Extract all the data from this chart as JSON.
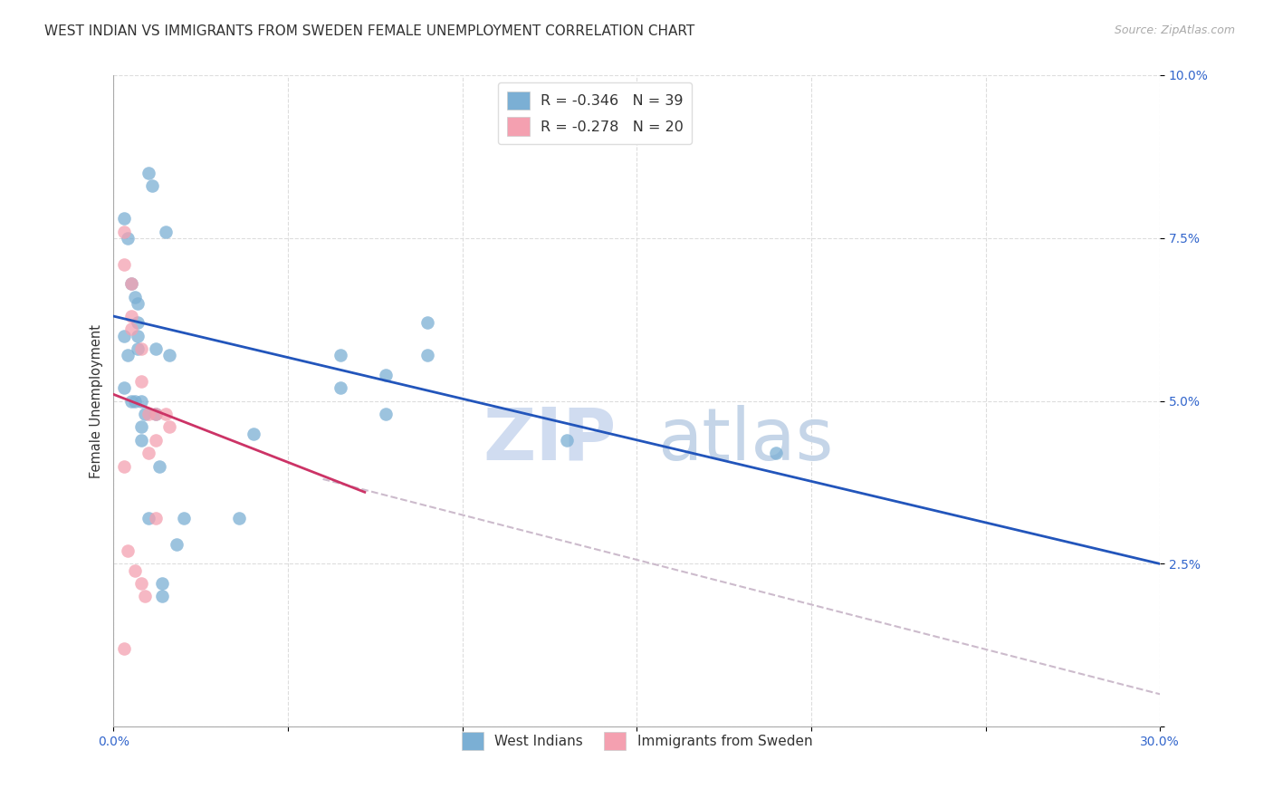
{
  "title": "WEST INDIAN VS IMMIGRANTS FROM SWEDEN FEMALE UNEMPLOYMENT CORRELATION CHART",
  "source": "Source: ZipAtlas.com",
  "ylabel": "Female Unemployment",
  "xlim": [
    0.0,
    0.3
  ],
  "ylim": [
    0.0,
    0.1
  ],
  "xtick_positions": [
    0.0,
    0.05,
    0.1,
    0.15,
    0.2,
    0.25,
    0.3
  ],
  "ytick_positions": [
    0.0,
    0.025,
    0.05,
    0.075,
    0.1
  ],
  "ytick_labels": [
    "",
    "2.5%",
    "5.0%",
    "7.5%",
    "10.0%"
  ],
  "xtick_labels": [
    "0.0%",
    "",
    "",
    "",
    "",
    "",
    "30.0%"
  ],
  "legend1_label": "R = -0.346   N = 39",
  "legend2_label": "R = -0.278   N = 20",
  "legend_bottom1": "West Indians",
  "legend_bottom2": "Immigrants from Sweden",
  "blue_color": "#7BAFD4",
  "pink_color": "#F4A0B0",
  "blue_line_color": "#2255BB",
  "pink_line_color": "#CC3366",
  "dashed_line_color": "#CCBBCC",
  "watermark_zip": "ZIP",
  "watermark_atlas": "atlas",
  "blue_scatter_x": [
    0.007,
    0.007,
    0.01,
    0.011,
    0.003,
    0.004,
    0.005,
    0.006,
    0.007,
    0.012,
    0.015,
    0.003,
    0.004,
    0.007,
    0.016,
    0.003,
    0.005,
    0.006,
    0.008,
    0.009,
    0.012,
    0.008,
    0.008,
    0.013,
    0.01,
    0.02,
    0.018,
    0.065,
    0.09,
    0.065,
    0.09,
    0.078,
    0.13,
    0.078,
    0.014,
    0.014,
    0.036,
    0.04,
    0.19
  ],
  "blue_scatter_y": [
    0.062,
    0.058,
    0.085,
    0.083,
    0.078,
    0.075,
    0.068,
    0.066,
    0.065,
    0.058,
    0.076,
    0.06,
    0.057,
    0.06,
    0.057,
    0.052,
    0.05,
    0.05,
    0.05,
    0.048,
    0.048,
    0.046,
    0.044,
    0.04,
    0.032,
    0.032,
    0.028,
    0.052,
    0.062,
    0.057,
    0.057,
    0.054,
    0.044,
    0.048,
    0.022,
    0.02,
    0.032,
    0.045,
    0.042
  ],
  "pink_scatter_x": [
    0.003,
    0.003,
    0.005,
    0.005,
    0.005,
    0.008,
    0.008,
    0.01,
    0.012,
    0.012,
    0.015,
    0.016,
    0.003,
    0.004,
    0.012,
    0.006,
    0.008,
    0.009,
    0.003,
    0.01
  ],
  "pink_scatter_y": [
    0.076,
    0.071,
    0.068,
    0.063,
    0.061,
    0.058,
    0.053,
    0.048,
    0.048,
    0.044,
    0.048,
    0.046,
    0.04,
    0.027,
    0.032,
    0.024,
    0.022,
    0.02,
    0.012,
    0.042
  ],
  "blue_line_x": [
    0.0,
    0.3
  ],
  "blue_line_y": [
    0.063,
    0.025
  ],
  "pink_line_x": [
    0.0,
    0.072
  ],
  "pink_line_y": [
    0.051,
    0.036
  ],
  "dashed_line_x": [
    0.06,
    0.3
  ],
  "dashed_line_y": [
    0.038,
    0.005
  ],
  "title_fontsize": 11,
  "axis_tick_fontsize": 10,
  "scatter_size": 110
}
